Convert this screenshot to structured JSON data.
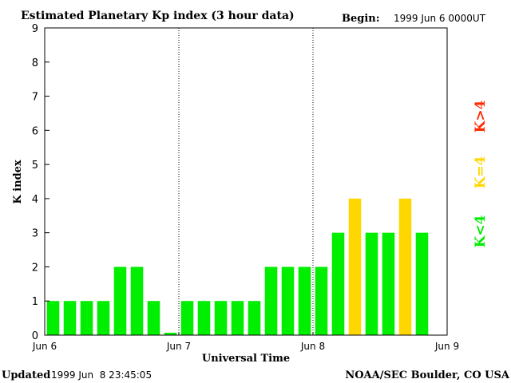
{
  "chart_data": {
    "type": "bar",
    "title": "Estimated Planetary Kp index (3 hour data)",
    "begin_label": "Begin:",
    "begin_value": "1999 Jun 6 0000UT",
    "xlabel": "Universal Time",
    "ylabel": "K index",
    "ylim": [
      0,
      9
    ],
    "yticks": [
      "0",
      "1",
      "2",
      "3",
      "4",
      "5",
      "6",
      "7",
      "8",
      "9"
    ],
    "xticks": [
      "Jun 6",
      "Jun 7",
      "Jun 8",
      "Jun 9"
    ],
    "values": [
      1,
      1,
      1,
      1,
      2,
      2,
      1,
      0.07,
      1,
      1,
      1,
      1,
      1,
      2,
      2,
      2,
      2,
      3,
      4,
      3,
      3,
      4,
      3
    ],
    "bar_slots": 24,
    "day_separators": [
      8,
      16
    ],
    "colors": {
      "low": "#00ee00",
      "equal": "#ffd700",
      "high": "#ff2a00"
    },
    "legend": [
      {
        "label": "K<4",
        "color": "#00ee00"
      },
      {
        "label": "K=4",
        "color": "#ffd700"
      },
      {
        "label": "K>4",
        "color": "#ff2a00"
      }
    ]
  },
  "footer": {
    "updated_label": "Updated",
    "updated_value": "1999 Jun  8 23:45:05",
    "source": "NOAA/SEC Boulder, CO USA"
  }
}
